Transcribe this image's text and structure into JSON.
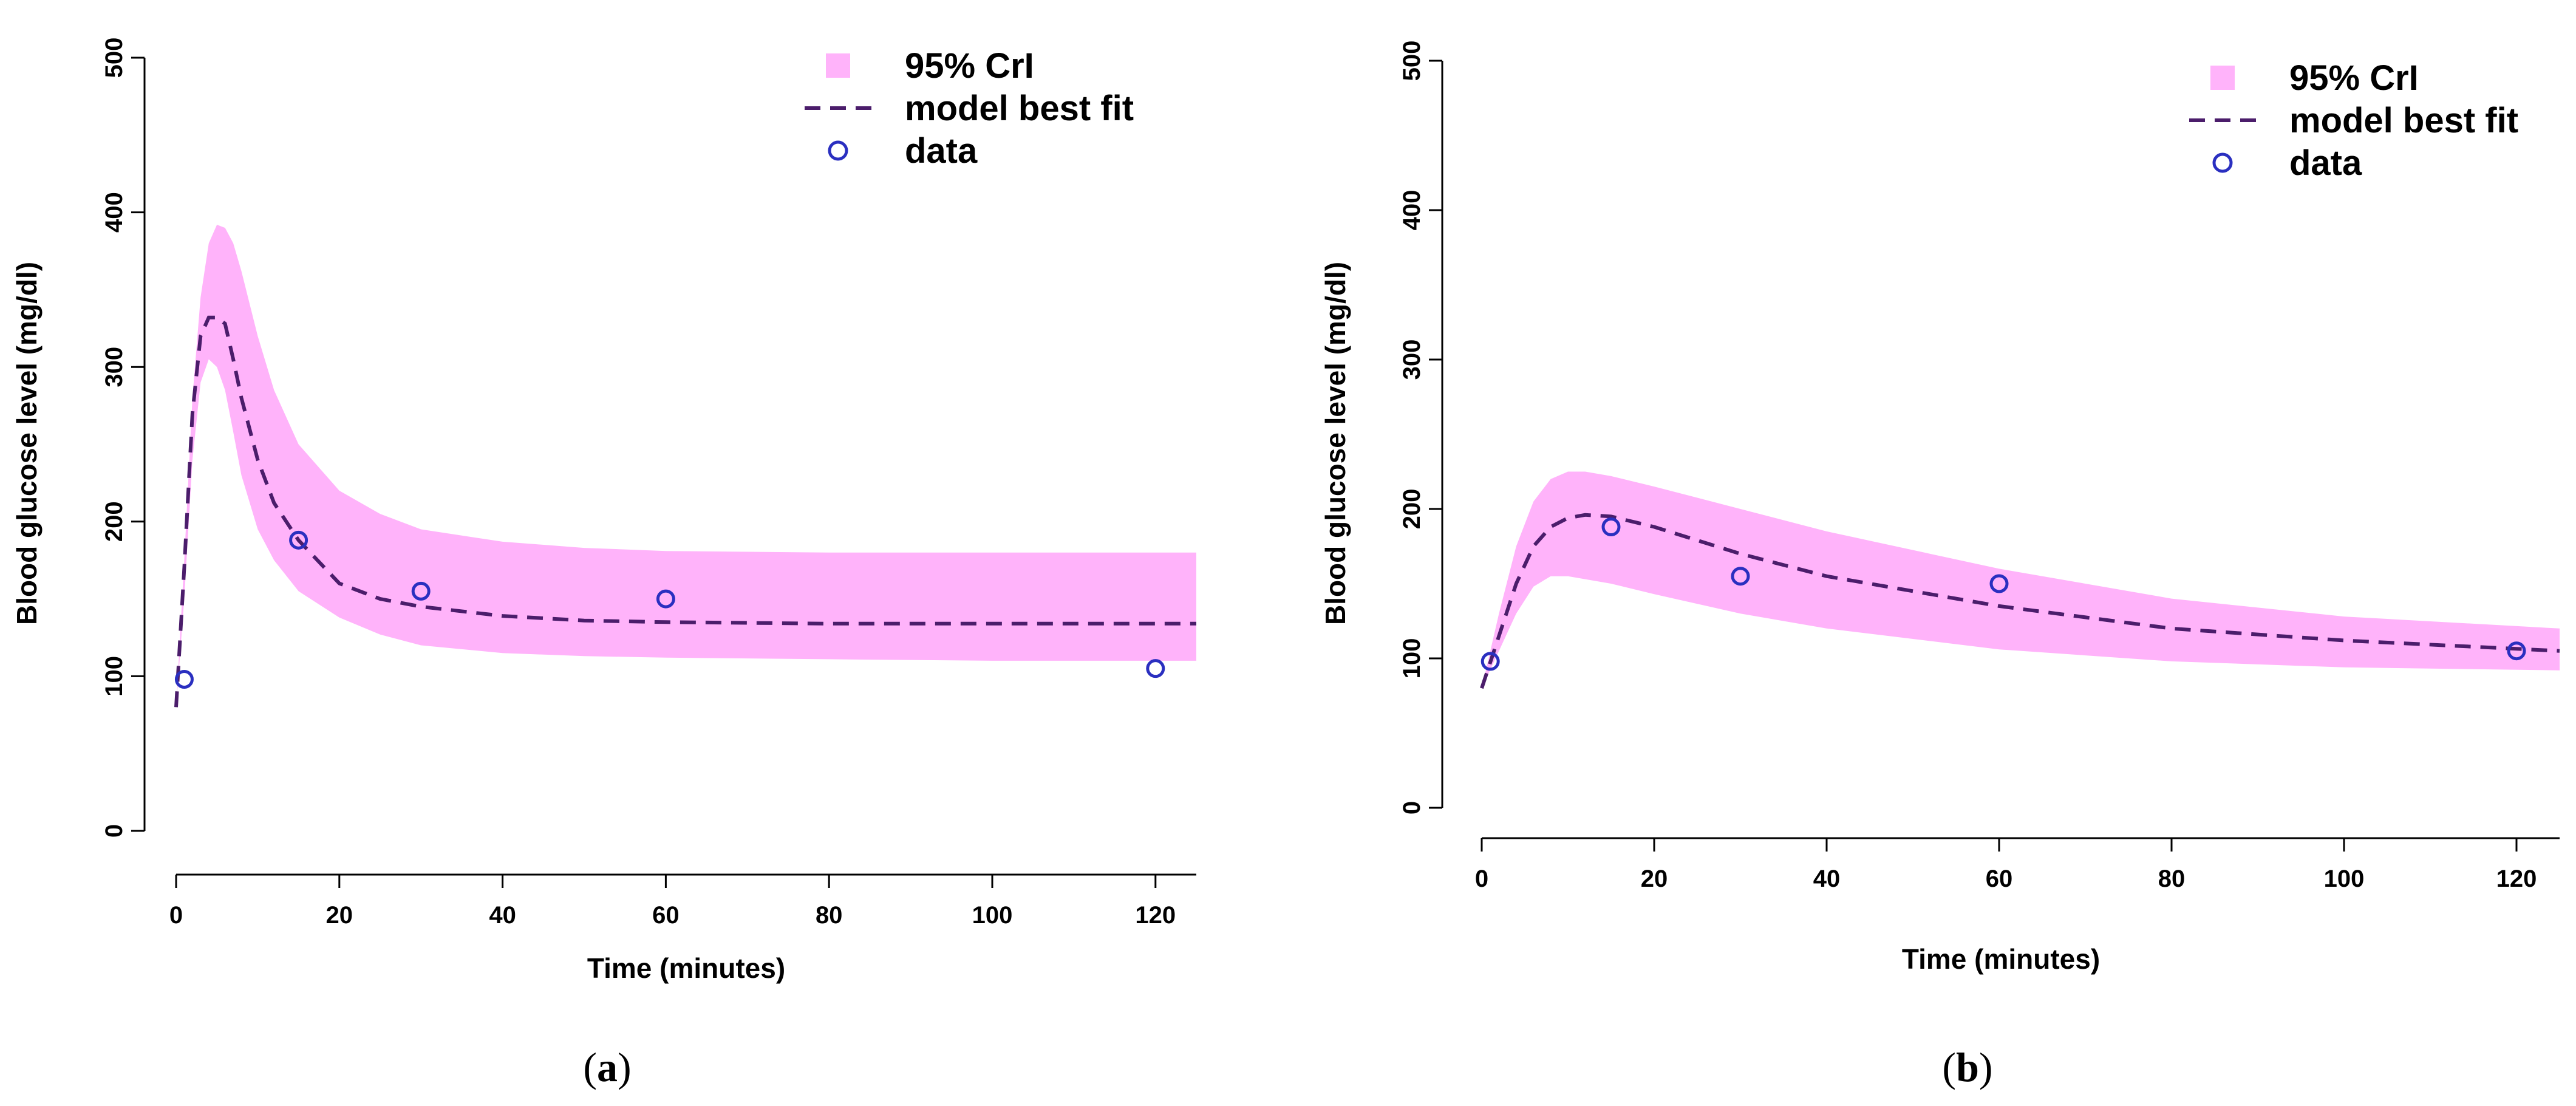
{
  "colors": {
    "band": "#ffb3fa",
    "fit": "#4b1d6b",
    "points": "#2a2fc0"
  },
  "chart_data": [
    {
      "type": "line",
      "panel_label": "a",
      "xlabel": "Time (minutes)",
      "ylabel": "Blood glucose level (mg/dl)",
      "xlim": [
        0,
        125
      ],
      "ylim": [
        0,
        500
      ],
      "xticks": [
        0,
        20,
        40,
        60,
        80,
        100,
        120
      ],
      "yticks": [
        0,
        100,
        200,
        300,
        400,
        500
      ],
      "legend": {
        "position": "top-right",
        "band": "95% CrI",
        "fit": "model best fit",
        "data": "data"
      },
      "series": [
        {
          "name": "95% CrI",
          "kind": "band",
          "x": [
            0,
            1,
            2,
            3,
            4,
            5,
            6,
            7,
            8,
            10,
            12,
            15,
            20,
            25,
            30,
            40,
            50,
            60,
            80,
            100,
            125
          ],
          "upper": [
            80,
            175,
            280,
            345,
            380,
            392,
            390,
            380,
            362,
            320,
            285,
            250,
            220,
            205,
            195,
            187,
            183,
            181,
            180,
            180,
            180
          ],
          "lower": [
            80,
            150,
            240,
            290,
            305,
            300,
            285,
            258,
            230,
            195,
            175,
            155,
            138,
            127,
            120,
            115,
            113,
            112,
            111,
            110,
            110
          ]
        },
        {
          "name": "model best fit",
          "kind": "line",
          "x": [
            0,
            1,
            2,
            3,
            4,
            5,
            6,
            7,
            8,
            10,
            12,
            15,
            20,
            25,
            30,
            40,
            50,
            60,
            80,
            100,
            125
          ],
          "y": [
            80,
            170,
            270,
            320,
            332,
            332,
            328,
            305,
            280,
            240,
            212,
            188,
            160,
            150,
            145,
            139,
            136,
            135,
            134,
            134,
            134
          ]
        },
        {
          "name": "data",
          "kind": "scatter",
          "x": [
            1,
            15,
            30,
            60,
            120
          ],
          "y": [
            98,
            188,
            155,
            150,
            105
          ]
        }
      ]
    },
    {
      "type": "line",
      "panel_label": "b",
      "xlabel": "Time (minutes)",
      "ylabel": "Blood glucose level (mg/dl)",
      "xlim": [
        0,
        125
      ],
      "ylim": [
        0,
        500
      ],
      "xticks": [
        0,
        20,
        40,
        60,
        80,
        100,
        120
      ],
      "yticks": [
        0,
        100,
        200,
        300,
        400,
        500
      ],
      "legend": {
        "position": "top-right",
        "band": "95% CrI",
        "fit": "model best fit",
        "data": "data"
      },
      "series": [
        {
          "name": "95% CrI",
          "kind": "band",
          "x": [
            0,
            2,
            4,
            6,
            8,
            10,
            12,
            15,
            20,
            30,
            40,
            60,
            80,
            100,
            125
          ],
          "upper": [
            80,
            130,
            175,
            205,
            220,
            225,
            225,
            222,
            215,
            200,
            185,
            160,
            140,
            128,
            120
          ],
          "lower": [
            80,
            105,
            130,
            148,
            155,
            155,
            153,
            150,
            143,
            130,
            120,
            106,
            98,
            94,
            92
          ]
        },
        {
          "name": "model best fit",
          "kind": "line",
          "x": [
            0,
            2,
            4,
            6,
            8,
            10,
            12,
            15,
            20,
            30,
            40,
            60,
            80,
            100,
            125
          ],
          "y": [
            80,
            115,
            150,
            175,
            188,
            194,
            196,
            195,
            188,
            170,
            155,
            135,
            120,
            112,
            105
          ]
        },
        {
          "name": "data",
          "kind": "scatter",
          "x": [
            1,
            15,
            30,
            60,
            120
          ],
          "y": [
            98,
            188,
            155,
            150,
            105
          ]
        }
      ]
    }
  ]
}
